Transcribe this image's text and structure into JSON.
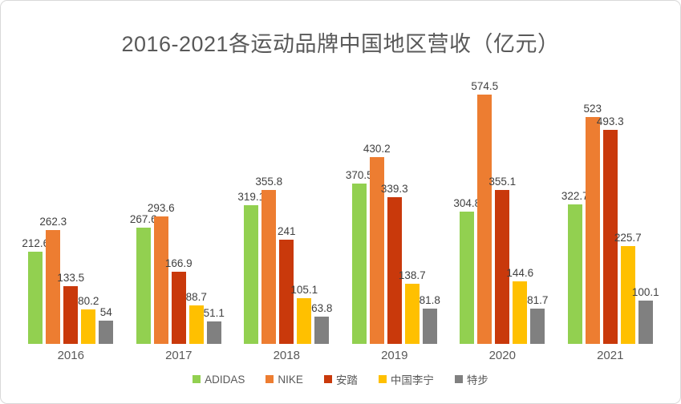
{
  "chart_data": {
    "type": "bar",
    "title": "2016-2021各运动品牌中国地区营收（亿元）",
    "categories": [
      "2016",
      "2017",
      "2018",
      "2019",
      "2020",
      "2021"
    ],
    "series": [
      {
        "name": "ADIDAS",
        "color": "#92D050",
        "values": [
          212.6,
          267.6,
          319.1,
          370.5,
          304.8,
          322.7
        ]
      },
      {
        "name": "NIKE",
        "color": "#ED7D31",
        "values": [
          262.3,
          293.6,
          355.8,
          430.2,
          574.5,
          523
        ]
      },
      {
        "name": "安踏",
        "color": "#C9390B",
        "values": [
          133.5,
          166.9,
          241,
          339.3,
          355.1,
          493.3
        ]
      },
      {
        "name": "中国李宁",
        "color": "#FFC000",
        "values": [
          80.2,
          88.7,
          105.1,
          138.7,
          144.6,
          225.7
        ]
      },
      {
        "name": "特步",
        "color": "#808080",
        "values": [
          54,
          51.1,
          63.8,
          81.8,
          81.7,
          100.1
        ]
      }
    ],
    "ylim": [
      0,
      600
    ],
    "grid": false,
    "axis_lines": false,
    "data_labels": true,
    "legend_position": "bottom"
  },
  "styles": {
    "title_color": "#595959",
    "data_label_color": "#404040",
    "axis_label_color": "#595959",
    "frame_border_color": "#D9D9D9",
    "background": "#FFFFFF"
  }
}
